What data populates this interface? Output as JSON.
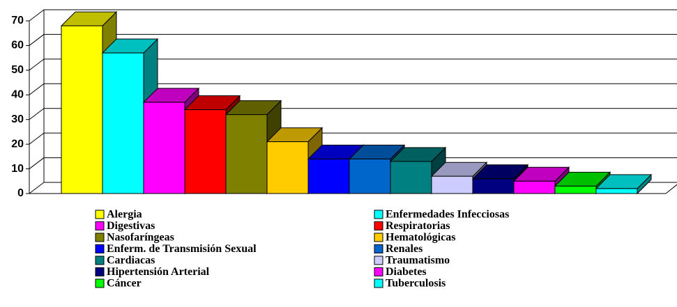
{
  "chart_data": {
    "type": "bar3d",
    "categories": [
      "Alergia",
      "Enfermedades Infecciosas",
      "Digestivas",
      "Respiratorias",
      "Nasofaríngeas",
      "Hematológicas",
      "Enferm. de Transmisión Sexual",
      "Renales",
      "Cardiacas",
      "Traumatismo",
      "Hipertensión Arterial",
      "Diabetes",
      "Cáncer",
      "Tuberculosis"
    ],
    "values": [
      68,
      57,
      37,
      34,
      32,
      21,
      14,
      14,
      13,
      7,
      6,
      5,
      3,
      2
    ],
    "colors": [
      "#ffff00",
      "#00ffff",
      "#ff00ff",
      "#ff0000",
      "#808000",
      "#ffcc00",
      "#0000ff",
      "#0066cc",
      "#008080",
      "#ccccff",
      "#000080",
      "#ff00ff",
      "#00ff00",
      "#00ffff"
    ],
    "ylim": [
      0,
      70
    ],
    "yticks": [
      0,
      10,
      20,
      30,
      40,
      50,
      60,
      70
    ],
    "grid": true,
    "legend": "bottom"
  }
}
